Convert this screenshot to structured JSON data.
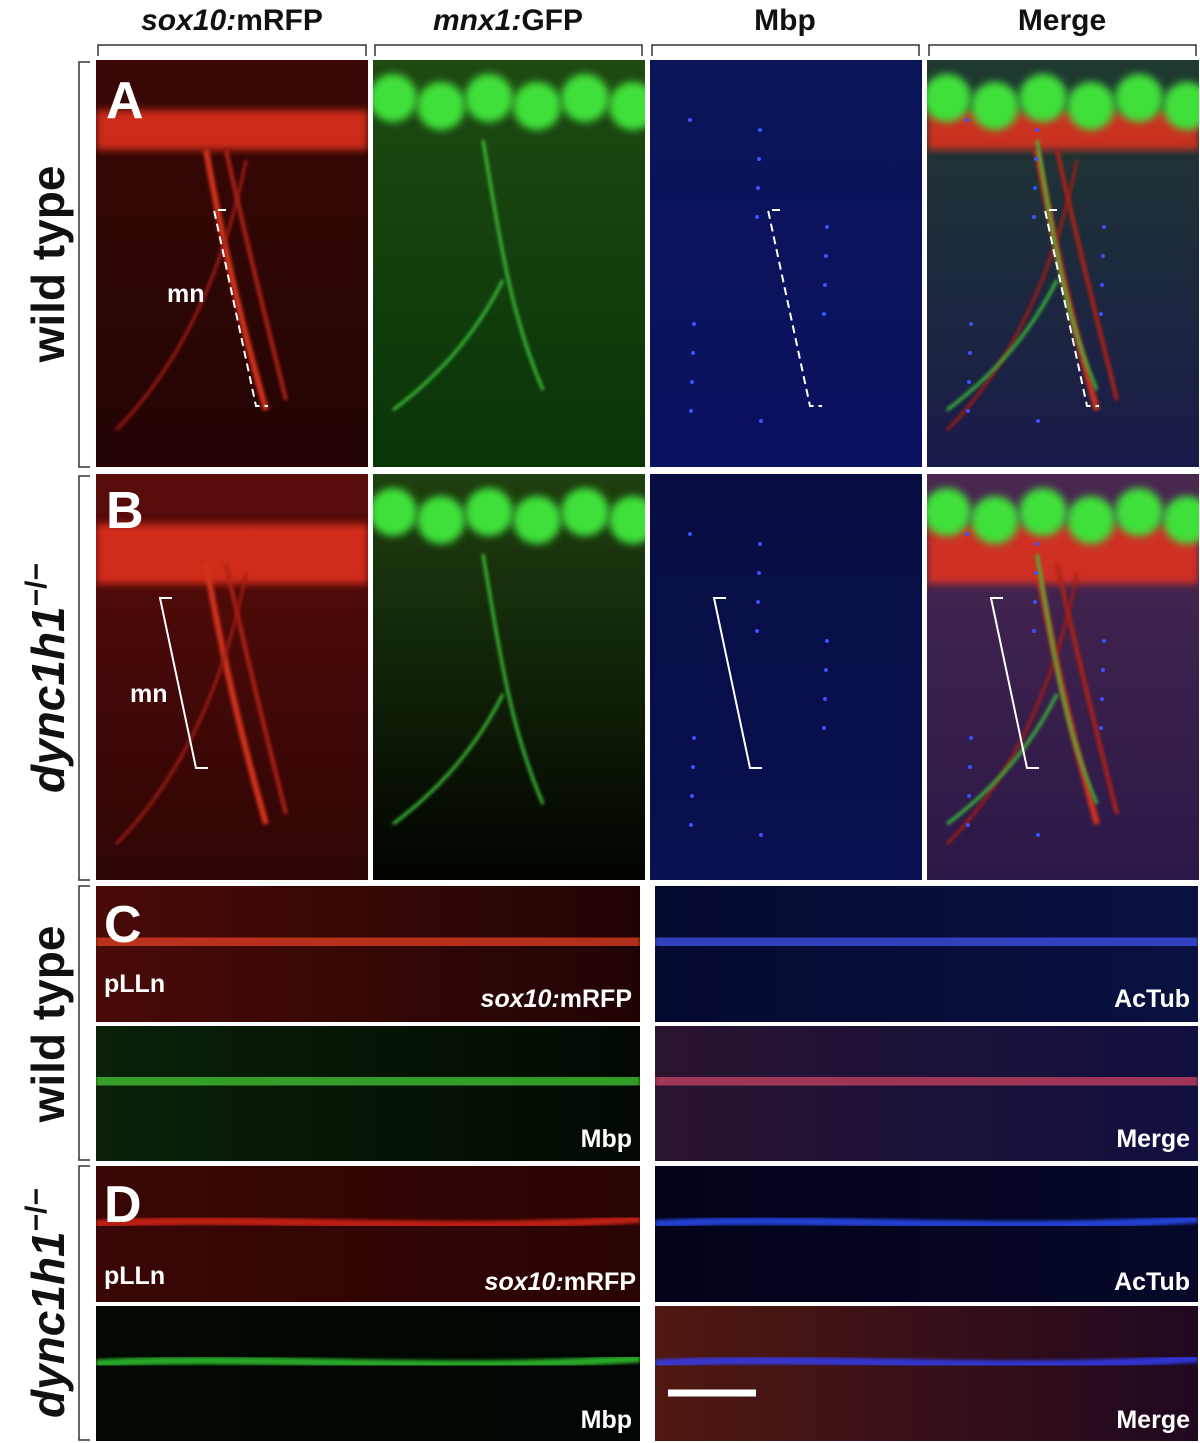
{
  "columns": [
    {
      "italic": "sox10:",
      "text": "mRFP"
    },
    {
      "italic": "mnx1:",
      "text": "GFP"
    },
    {
      "text": "Mbp"
    },
    {
      "text": "Merge"
    }
  ],
  "row_labels": [
    {
      "text": "wild type"
    },
    {
      "italic": "dync1h1",
      "sup": "−/−"
    },
    {
      "text": "wild type"
    },
    {
      "italic": "dync1h1",
      "sup": "−/−"
    }
  ],
  "panels": [
    {
      "letter": "A",
      "annotation": "mn"
    },
    {
      "letter": "B",
      "annotation": "mn"
    },
    {
      "letter": "C",
      "annotation": "pLLn",
      "labels": [
        {
          "italic": "sox10:",
          "text": "mRFP"
        },
        {
          "text": "AcTub"
        },
        {
          "text": "Mbp"
        },
        {
          "text": "Merge"
        }
      ]
    },
    {
      "letter": "D",
      "annotation": "pLLn",
      "labels": [
        {
          "italic": "sox10:",
          "text": "mRFP"
        },
        {
          "text": "AcTub"
        },
        {
          "text": "Mbp"
        },
        {
          "text": "Merge"
        }
      ]
    }
  ]
}
